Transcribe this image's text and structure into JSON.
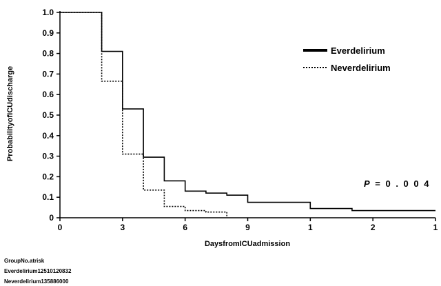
{
  "chart_data": {
    "type": "line",
    "xlabel": "DaysfromICUadmission",
    "ylabel": "ProbabilityofICUdischarge",
    "x_tick_labels": [
      "0",
      "3",
      "6",
      "9",
      "1",
      "2",
      "1"
    ],
    "y_ticks": [
      0,
      0.1,
      0.2,
      0.3,
      0.4,
      0.5,
      0.6,
      0.7,
      0.8,
      0.9,
      1.0
    ],
    "y_tick_labels": [
      "0",
      "0.1",
      "0.2",
      "0.3",
      "0.4",
      "0.5",
      "0.6",
      "0.7",
      "0.8",
      "0.9",
      "1.0"
    ],
    "ylim": [
      0,
      1.0
    ],
    "xlim": [
      0,
      18
    ],
    "legend_position": "top-right",
    "annotation": {
      "p_label": "P",
      "p_value": " = 0 . 0 0 4"
    },
    "series": [
      {
        "name": "Everdelirium",
        "style": "solid",
        "color": "#000000",
        "x": [
          0,
          2,
          2,
          3,
          3,
          4,
          4,
          5,
          5,
          6,
          6,
          7,
          7,
          8,
          8,
          9,
          9,
          12,
          12,
          14,
          14,
          18
        ],
        "y": [
          1.0,
          1.0,
          0.81,
          0.81,
          0.53,
          0.53,
          0.295,
          0.295,
          0.18,
          0.18,
          0.13,
          0.13,
          0.12,
          0.12,
          0.11,
          0.11,
          0.075,
          0.075,
          0.045,
          0.045,
          0.035,
          0.035
        ]
      },
      {
        "name": "Neverdelirium",
        "style": "dotted",
        "color": "#000000",
        "x": [
          0,
          2,
          2,
          3,
          3,
          4,
          4,
          5,
          5,
          6,
          6,
          7,
          7,
          8,
          8
        ],
        "y": [
          1.0,
          1.0,
          0.665,
          0.665,
          0.31,
          0.31,
          0.135,
          0.135,
          0.055,
          0.055,
          0.035,
          0.035,
          0.028,
          0.028,
          0.0
        ]
      }
    ]
  },
  "risk_table": {
    "header": "GroupNo.atrisk",
    "rows": [
      "Everdelirium12510120832",
      "Neverdelirium135886000"
    ]
  }
}
